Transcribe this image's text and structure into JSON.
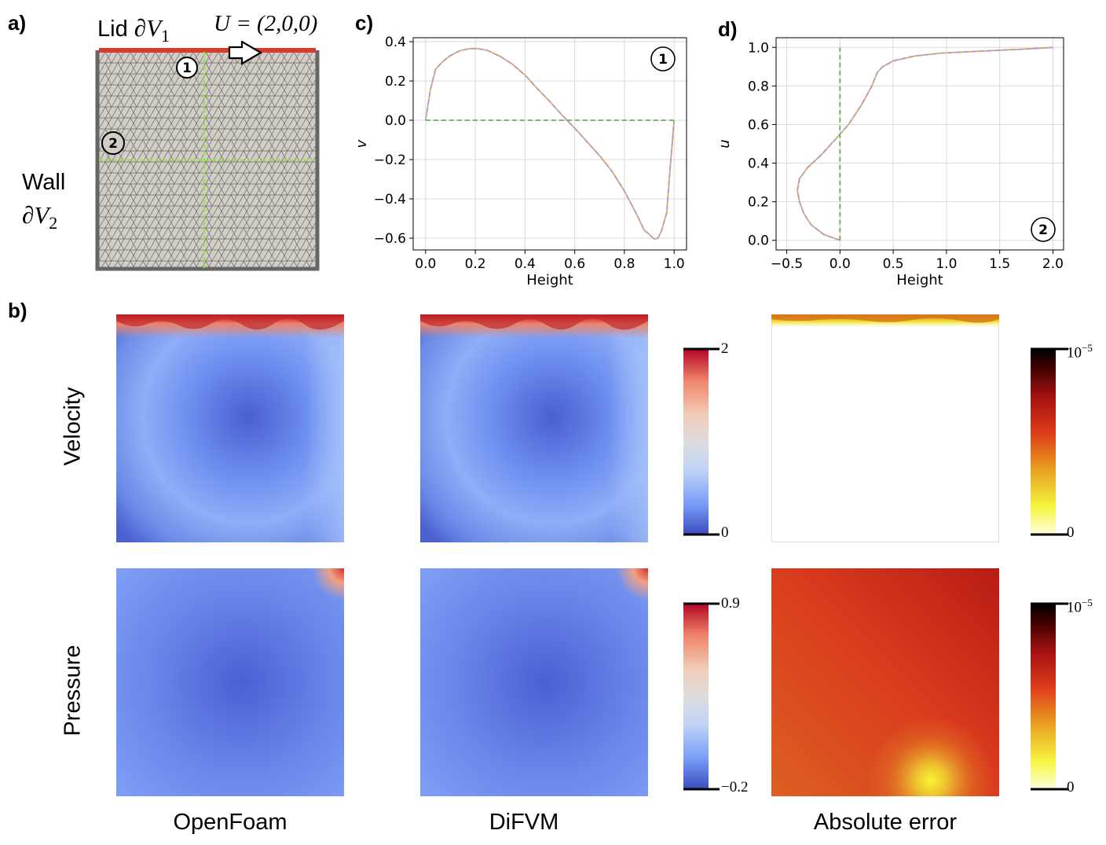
{
  "panel_letters": {
    "a": "a)",
    "b": "b)",
    "c": "c)",
    "d": "d)"
  },
  "panel_a": {
    "lid_label": "Lid",
    "lid_symbol": "∂V",
    "lid_sub": "1",
    "velocity_label": "U = (2,0,0)",
    "wall_label": "Wall",
    "wall_symbol": "∂V",
    "wall_sub": "2",
    "marker1": "1",
    "marker2": "2",
    "colors": {
      "lid": "#d93a2b",
      "wall": "#666666",
      "mesh_bg": "#d2cdc6",
      "probe": "#8ee64a"
    }
  },
  "chart_data": [
    {
      "type": "line",
      "xlabel": "Height",
      "ylabel": "v",
      "xlim": [
        -0.05,
        1.05
      ],
      "ylim": [
        -0.66,
        0.42
      ],
      "xticks": [
        "0.0",
        "0.2",
        "0.4",
        "0.6",
        "0.8",
        "1.0"
      ],
      "yticks": [
        "0.4",
        "0.2",
        "0.0",
        "−0.2",
        "−0.4",
        "−0.6"
      ],
      "grid": true,
      "marker": "1",
      "series": [
        {
          "style": "solid",
          "color": "#f3a45a",
          "x": [
            0.0,
            0.02,
            0.04,
            0.07,
            0.1,
            0.14,
            0.18,
            0.21,
            0.25,
            0.3,
            0.35,
            0.4,
            0.45,
            0.5,
            0.55,
            0.6,
            0.65,
            0.7,
            0.75,
            0.8,
            0.85,
            0.88,
            0.9,
            0.92,
            0.935,
            0.95,
            0.97,
            0.985,
            1.0
          ],
          "y": [
            0.0,
            0.16,
            0.26,
            0.3,
            0.33,
            0.355,
            0.365,
            0.365,
            0.355,
            0.325,
            0.285,
            0.23,
            0.16,
            0.095,
            0.025,
            -0.04,
            -0.11,
            -0.18,
            -0.26,
            -0.36,
            -0.48,
            -0.56,
            -0.58,
            -0.605,
            -0.6,
            -0.56,
            -0.47,
            -0.23,
            0.0
          ]
        },
        {
          "style": "dashed",
          "color": "#9fa3c9",
          "x": [
            0.0,
            0.02,
            0.04,
            0.07,
            0.1,
            0.14,
            0.18,
            0.21,
            0.25,
            0.3,
            0.35,
            0.4,
            0.45,
            0.5,
            0.55,
            0.6,
            0.65,
            0.7,
            0.75,
            0.8,
            0.85,
            0.88,
            0.9,
            0.92,
            0.935,
            0.95,
            0.97,
            0.985,
            1.0
          ],
          "y": [
            0.0,
            0.16,
            0.26,
            0.3,
            0.33,
            0.355,
            0.365,
            0.365,
            0.355,
            0.325,
            0.285,
            0.23,
            0.16,
            0.095,
            0.025,
            -0.04,
            -0.11,
            -0.18,
            -0.26,
            -0.36,
            -0.48,
            -0.56,
            -0.58,
            -0.605,
            -0.6,
            -0.56,
            -0.47,
            -0.23,
            0.0
          ]
        },
        {
          "style": "dashed",
          "color": "#6aab5a",
          "x": [
            0.0,
            1.0
          ],
          "y": [
            0.0,
            0.0
          ]
        }
      ]
    },
    {
      "type": "line",
      "xlabel": "Height",
      "ylabel": "u",
      "xlim": [
        -0.6,
        2.1
      ],
      "ylim": [
        -0.05,
        1.05
      ],
      "xticks": [
        "−0.5",
        "0.0",
        "0.5",
        "1.0",
        "1.5",
        "2.0"
      ],
      "yticks": [
        "1.0",
        "0.8",
        "0.6",
        "0.4",
        "0.2",
        "0.0"
      ],
      "grid": true,
      "marker": "2",
      "series": [
        {
          "style": "solid",
          "color": "#f3a45a",
          "x": [
            0.0,
            -0.15,
            -0.27,
            -0.34,
            -0.38,
            -0.4,
            -0.38,
            -0.3,
            -0.18,
            -0.05,
            0.08,
            0.2,
            0.3,
            0.35,
            0.4,
            0.5,
            0.7,
            0.95,
            1.3,
            1.7,
            2.0
          ],
          "y": [
            0.0,
            0.03,
            0.08,
            0.14,
            0.2,
            0.26,
            0.32,
            0.38,
            0.44,
            0.52,
            0.6,
            0.7,
            0.8,
            0.87,
            0.9,
            0.93,
            0.955,
            0.97,
            0.98,
            0.99,
            1.0
          ]
        },
        {
          "style": "dashed",
          "color": "#9fa3c9",
          "x": [
            0.0,
            -0.15,
            -0.27,
            -0.34,
            -0.38,
            -0.4,
            -0.38,
            -0.3,
            -0.18,
            -0.05,
            0.08,
            0.2,
            0.3,
            0.35,
            0.4,
            0.5,
            0.7,
            0.95,
            1.3,
            1.7,
            2.0
          ],
          "y": [
            0.0,
            0.03,
            0.08,
            0.14,
            0.2,
            0.26,
            0.32,
            0.38,
            0.44,
            0.52,
            0.6,
            0.7,
            0.8,
            0.87,
            0.9,
            0.93,
            0.955,
            0.97,
            0.98,
            0.99,
            1.0
          ]
        },
        {
          "style": "dashed",
          "color": "#6aab5a",
          "x": [
            0.0,
            0.0
          ],
          "y": [
            0.0,
            1.0
          ]
        }
      ]
    }
  ],
  "panel_b": {
    "rows": [
      "Velocity",
      "Pressure"
    ],
    "columns": [
      "OpenFoam",
      "DiFVM",
      "Absolute error"
    ],
    "colorbars": {
      "velocity": {
        "max": "2",
        "min": "0"
      },
      "pressure": {
        "max": "0.9",
        "min": "−0.2"
      },
      "error_velocity": {
        "max_base": "10",
        "max_exp": "−5",
        "min": "0"
      },
      "error_pressure": {
        "max_base": "10",
        "max_exp": "−5",
        "min": "0"
      }
    },
    "colormaps": {
      "coolwarm": [
        "#3b4cc0",
        "#7b9ff9",
        "#c0d4f5",
        "#dddddd",
        "#f2cbb7",
        "#ee8468",
        "#b40426"
      ],
      "hot_r": [
        "#ffffe0",
        "#f5f540",
        "#e9a020",
        "#de3a1c",
        "#a01010",
        "#400000",
        "#000000"
      ]
    }
  }
}
